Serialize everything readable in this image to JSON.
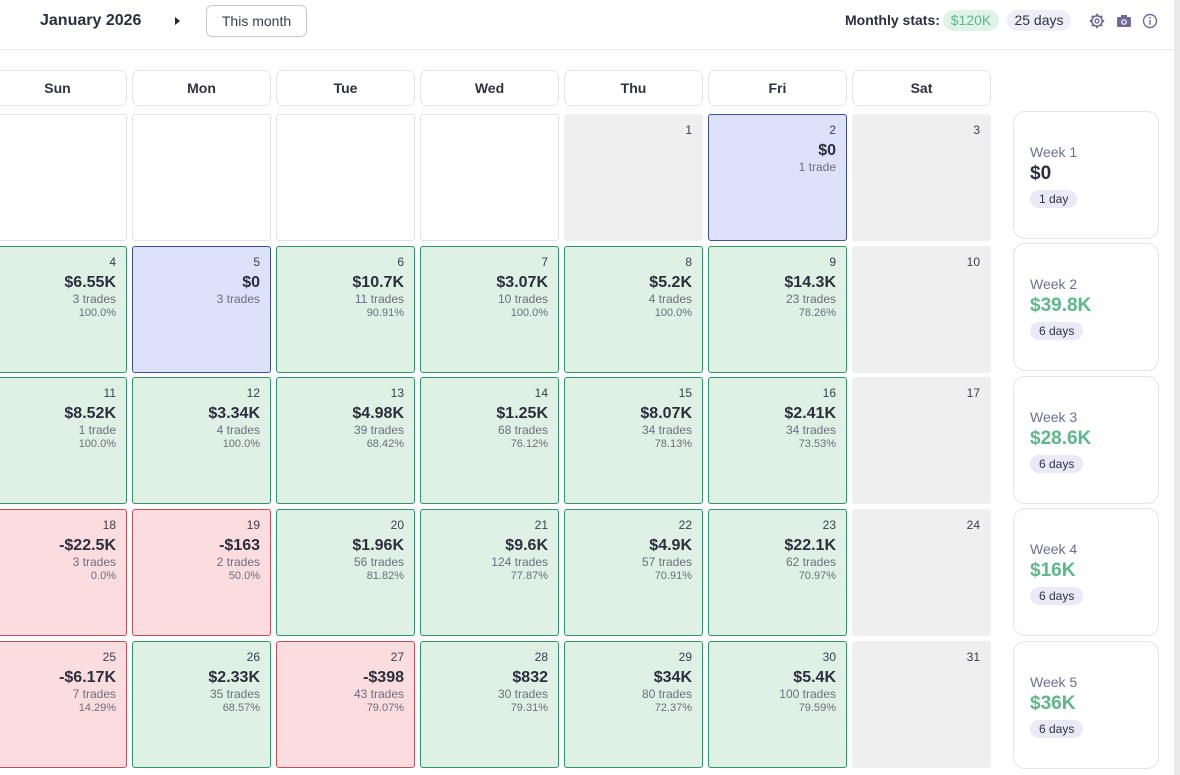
{
  "header": {
    "month_title": "January 2026",
    "this_month_label": "This month",
    "stats_label": "Monthly stats:",
    "stats_amount": "$120K",
    "stats_days": "25 days",
    "icons": [
      "prev-arrow-icon",
      "next-arrow-icon",
      "gear-icon",
      "camera-icon",
      "info-icon"
    ]
  },
  "day_headers": [
    "Sun",
    "Mon",
    "Tue",
    "Wed",
    "Thu",
    "Fri",
    "Sat"
  ],
  "colors": {
    "profit": "#5cb88a",
    "profit_cell_bg": "#dff1e4",
    "loss_cell_bg": "#fbdcdf",
    "breakeven_cell_bg": "#dde2fb",
    "weekend_bg": "#efefef",
    "day_pill_bg": "#ece9f6"
  },
  "days": [
    {
      "day": "",
      "state": "empty"
    },
    {
      "day": "",
      "state": "empty"
    },
    {
      "day": "",
      "state": "empty"
    },
    {
      "day": "",
      "state": "empty"
    },
    {
      "day": "1",
      "state": "gray"
    },
    {
      "day": "2",
      "state": "blue",
      "pnl": "$0",
      "trades": "1 trade"
    },
    {
      "day": "3",
      "state": "gray"
    },
    {
      "day": "4",
      "state": "green",
      "pnl": "$6.55K",
      "trades": "3 trades",
      "rate": "100.0%"
    },
    {
      "day": "5",
      "state": "blue",
      "pnl": "$0",
      "trades": "3 trades"
    },
    {
      "day": "6",
      "state": "green",
      "pnl": "$10.7K",
      "trades": "11 trades",
      "rate": "90.91%"
    },
    {
      "day": "7",
      "state": "green",
      "pnl": "$3.07K",
      "trades": "10 trades",
      "rate": "100.0%"
    },
    {
      "day": "8",
      "state": "green",
      "pnl": "$5.2K",
      "trades": "4 trades",
      "rate": "100.0%"
    },
    {
      "day": "9",
      "state": "green",
      "pnl": "$14.3K",
      "trades": "23 trades",
      "rate": "78.26%"
    },
    {
      "day": "10",
      "state": "gray"
    },
    {
      "day": "11",
      "state": "green",
      "pnl": "$8.52K",
      "trades": "1 trade",
      "rate": "100.0%"
    },
    {
      "day": "12",
      "state": "green",
      "pnl": "$3.34K",
      "trades": "4 trades",
      "rate": "100.0%"
    },
    {
      "day": "13",
      "state": "green",
      "pnl": "$4.98K",
      "trades": "39 trades",
      "rate": "68.42%"
    },
    {
      "day": "14",
      "state": "green",
      "pnl": "$1.25K",
      "trades": "68 trades",
      "rate": "76.12%"
    },
    {
      "day": "15",
      "state": "green",
      "pnl": "$8.07K",
      "trades": "34 trades",
      "rate": "78.13%"
    },
    {
      "day": "16",
      "state": "green",
      "pnl": "$2.41K",
      "trades": "34 trades",
      "rate": "73.53%"
    },
    {
      "day": "17",
      "state": "gray"
    },
    {
      "day": "18",
      "state": "red",
      "pnl": "-$22.5K",
      "trades": "3 trades",
      "rate": "0.0%"
    },
    {
      "day": "19",
      "state": "red",
      "pnl": "-$163",
      "trades": "2 trades",
      "rate": "50.0%"
    },
    {
      "day": "20",
      "state": "green",
      "pnl": "$1.96K",
      "trades": "56 trades",
      "rate": "81.82%"
    },
    {
      "day": "21",
      "state": "green",
      "pnl": "$9.6K",
      "trades": "124 trades",
      "rate": "77.87%"
    },
    {
      "day": "22",
      "state": "green",
      "pnl": "$4.9K",
      "trades": "57 trades",
      "rate": "70.91%"
    },
    {
      "day": "23",
      "state": "green",
      "pnl": "$22.1K",
      "trades": "62 trades",
      "rate": "70.97%"
    },
    {
      "day": "24",
      "state": "gray"
    },
    {
      "day": "25",
      "state": "red",
      "pnl": "-$6.17K",
      "trades": "7 trades",
      "rate": "14.29%"
    },
    {
      "day": "26",
      "state": "green",
      "pnl": "$2.33K",
      "trades": "35 trades",
      "rate": "68.57%"
    },
    {
      "day": "27",
      "state": "red",
      "pnl": "-$398",
      "trades": "43 trades",
      "rate": "79.07%"
    },
    {
      "day": "28",
      "state": "green",
      "pnl": "$832",
      "trades": "30 trades",
      "rate": "79.31%"
    },
    {
      "day": "29",
      "state": "green",
      "pnl": "$34K",
      "trades": "80 trades",
      "rate": "72.37%"
    },
    {
      "day": "30",
      "state": "green",
      "pnl": "$5.4K",
      "trades": "100 trades",
      "rate": "79.59%"
    },
    {
      "day": "31",
      "state": "gray"
    }
  ],
  "weeks": [
    {
      "label": "Week 1",
      "amount": "$0",
      "days": "1 day"
    },
    {
      "label": "Week 2",
      "amount": "$39.8K",
      "days": "6 days"
    },
    {
      "label": "Week 3",
      "amount": "$28.6K",
      "days": "6 days"
    },
    {
      "label": "Week 4",
      "amount": "$16K",
      "days": "6 days"
    },
    {
      "label": "Week 5",
      "amount": "$36K",
      "days": "6 days"
    }
  ]
}
